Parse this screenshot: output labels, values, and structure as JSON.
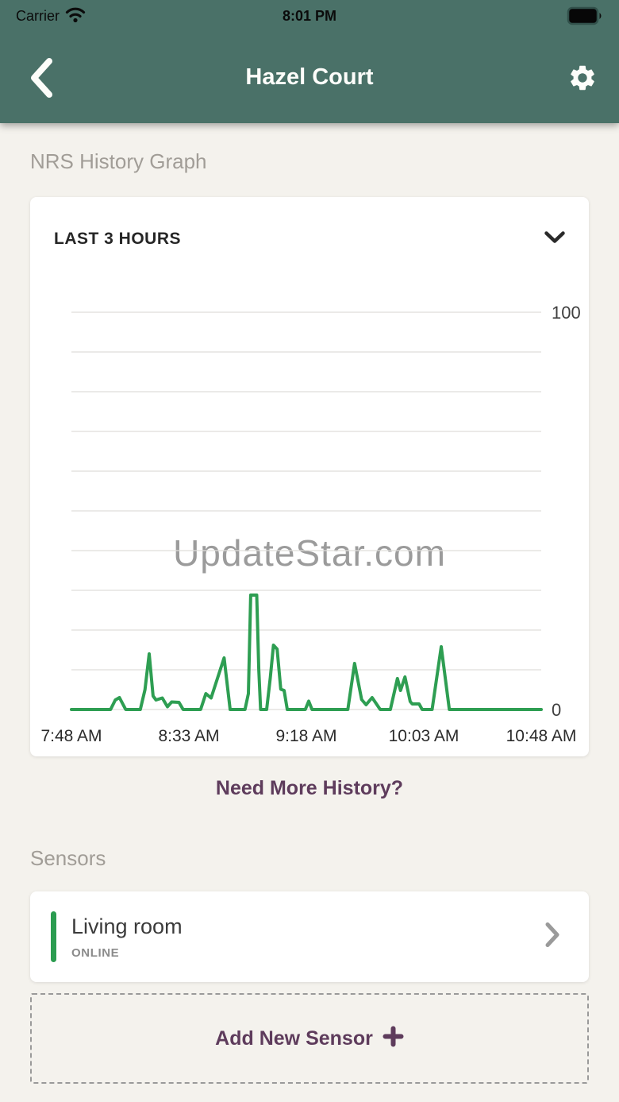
{
  "status_bar": {
    "carrier": "Carrier",
    "time": "8:01 PM"
  },
  "header": {
    "title": "Hazel Court"
  },
  "history": {
    "section_label": "NRS History Graph",
    "range_selector": "LAST 3 HOURS",
    "watermark": "UpdateStar.com",
    "more_link": "Need More History?"
  },
  "chart_data": {
    "type": "line",
    "title": "NRS History Graph",
    "series_name": "NRS",
    "line_color": "#2e9e52",
    "grid": true,
    "grid_step": 10,
    "xlim_minutes": [
      0,
      180
    ],
    "ylim": [
      0,
      100
    ],
    "y_axis_labels": [
      {
        "value": 100,
        "text": "100"
      },
      {
        "value": 0,
        "text": "0"
      }
    ],
    "x_ticks": [
      {
        "t": 0,
        "label": "7:48 AM"
      },
      {
        "t": 45,
        "label": "8:33 AM"
      },
      {
        "t": 90,
        "label": "9:18 AM"
      },
      {
        "t": 135,
        "label": "10:03 AM"
      },
      {
        "t": 180,
        "label": "10:48 AM"
      }
    ],
    "points": [
      [
        0,
        0
      ],
      [
        15,
        0
      ],
      [
        16.8,
        2.4
      ],
      [
        18.4,
        3
      ],
      [
        20.8,
        0
      ],
      [
        26.4,
        0
      ],
      [
        28.2,
        5
      ],
      [
        29.8,
        14
      ],
      [
        31.3,
        3.4
      ],
      [
        32.4,
        2.4
      ],
      [
        34.8,
        2.9
      ],
      [
        36.8,
        0.7
      ],
      [
        38.4,
        1.9
      ],
      [
        41.2,
        1.8
      ],
      [
        42.8,
        0
      ],
      [
        49.5,
        0
      ],
      [
        51.5,
        4
      ],
      [
        53.5,
        2.9
      ],
      [
        58.5,
        13
      ],
      [
        60.8,
        0
      ],
      [
        66.5,
        0
      ],
      [
        67.8,
        4
      ],
      [
        68.7,
        28.8
      ],
      [
        71.0,
        28.8
      ],
      [
        71.8,
        10
      ],
      [
        72.5,
        0
      ],
      [
        74.8,
        0
      ],
      [
        76.2,
        8
      ],
      [
        77.4,
        16.2
      ],
      [
        78.8,
        15.2
      ],
      [
        80.2,
        5.1
      ],
      [
        81.5,
        4.8
      ],
      [
        82.7,
        0
      ],
      [
        89.6,
        0
      ],
      [
        90.9,
        2.1
      ],
      [
        92.2,
        0
      ],
      [
        105.9,
        0
      ],
      [
        108.5,
        11.6
      ],
      [
        111.2,
        2.5
      ],
      [
        112.9,
        1.2
      ],
      [
        115.2,
        3
      ],
      [
        118.3,
        0
      ],
      [
        122.2,
        0
      ],
      [
        124.9,
        7.8
      ],
      [
        126.1,
        4.8
      ],
      [
        127.8,
        8.2
      ],
      [
        129.8,
        2
      ],
      [
        130.6,
        1.4
      ],
      [
        133.2,
        1.4
      ],
      [
        134.4,
        0
      ],
      [
        138.2,
        0
      ],
      [
        141.7,
        15.8
      ],
      [
        144.8,
        0
      ],
      [
        180,
        0
      ]
    ]
  },
  "sensors": {
    "section_label": "Sensors",
    "items": [
      {
        "name": "Living room",
        "status": "ONLINE",
        "status_color": "#2b9c50"
      }
    ],
    "add_button_label": "Add New Sensor"
  },
  "colors": {
    "header_teal": "#4a7168",
    "accent_plum": "#5e3c5c",
    "line_green": "#2e9e52",
    "page_background": "#f4f2ed"
  }
}
